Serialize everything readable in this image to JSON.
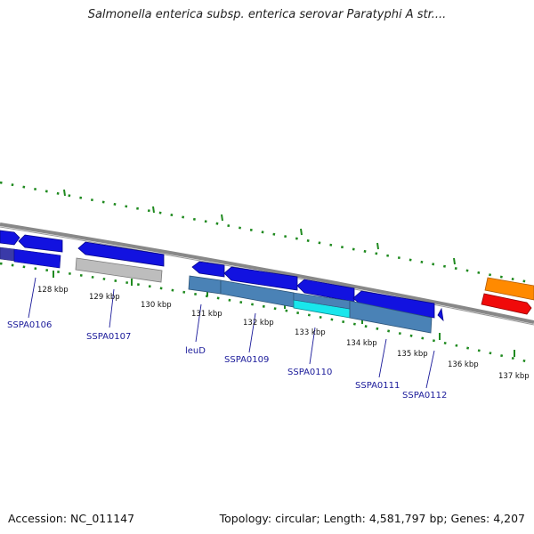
{
  "title": "Salmonella enterica subsp. enterica serovar Paratyphi A str....",
  "footer": {
    "accession": "Accession: NC_011147",
    "summary": "Topology: circular; Length: 4,581,797 bp; Genes: 4,207"
  },
  "ruler": {
    "ticks": [
      {
        "label": "128 kbp"
      },
      {
        "label": "129 kbp"
      },
      {
        "label": "130 kbp"
      },
      {
        "label": "131 kbp"
      },
      {
        "label": "132 kbp"
      },
      {
        "label": "133 kbp"
      },
      {
        "label": "134 kbp"
      },
      {
        "label": "135 kbp"
      },
      {
        "label": "136 kbp"
      },
      {
        "label": "137 kbp"
      }
    ]
  },
  "genes": [
    {
      "label": "SSPA0106"
    },
    {
      "label": "SSPA0107"
    },
    {
      "label": "leuD"
    },
    {
      "label": "SSPA0109"
    },
    {
      "label": "SSPA0110"
    },
    {
      "label": "SSPA0111"
    },
    {
      "label": "SSPA0112"
    }
  ],
  "colors": {
    "cds": "#0a0ae6",
    "cds_shadow": "#3a3aa8",
    "gene_steel": "#4a82b6",
    "gene_cyan": "#19e6ec",
    "gene_gray": "#b8b8b8",
    "feature_orange": "#ff8a00",
    "feature_red": "#f00a0a",
    "backbone": "#8a8a8a",
    "tick": "#1f8a1f",
    "label": "#1a1a9a"
  }
}
